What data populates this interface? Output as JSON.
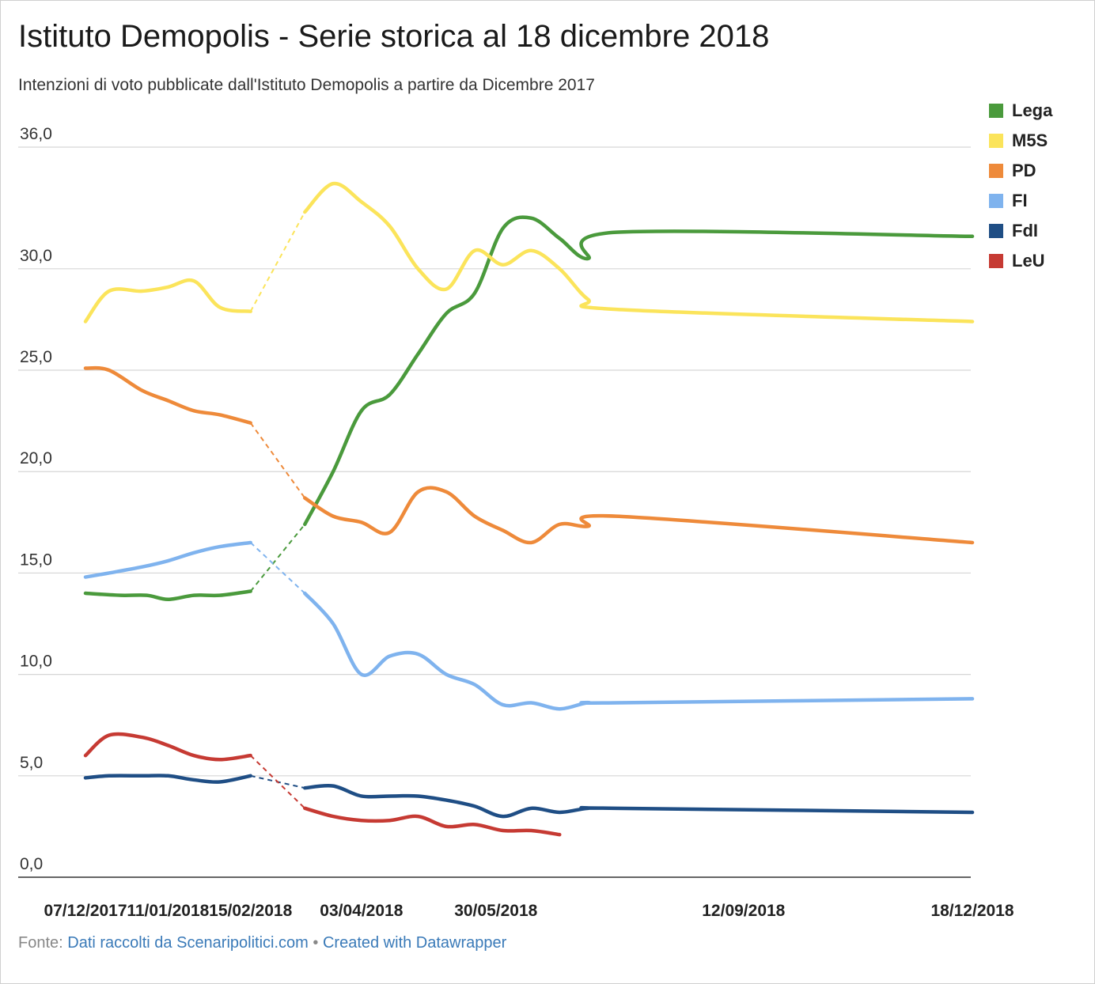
{
  "header": {
    "title": "Istituto Demopolis - Serie storica al 18 dicembre 2018",
    "subtitle": "Intenzioni di voto pubblicate dall'Istituto Demopolis a partire da Dicembre 2017"
  },
  "footer": {
    "source_prefix": "Fonte:",
    "source_link": "Dati raccolti da Scenaripolitici.com",
    "separator": "•",
    "credit_link": "Created with Datawrapper"
  },
  "chart_data": {
    "type": "line",
    "title": "Istituto Demopolis - Serie storica al 18 dicembre 2018",
    "subtitle": "Intenzioni di voto pubblicate dall'Istituto Demopolis a partire da Dicembre 2017",
    "xlabel": "",
    "ylabel": "",
    "ylim": [
      0,
      36
    ],
    "yticks": [
      0,
      5,
      10,
      15,
      20,
      25,
      30,
      36
    ],
    "ytick_labels": [
      "0,0",
      "5,0",
      "10,0",
      "15,0",
      "20,0",
      "25,0",
      "30,0",
      "36,0"
    ],
    "xlim": [
      "2017-12-07",
      "2018-12-18"
    ],
    "xtick_dates": [
      "2017-12-07",
      "2018-01-11",
      "2018-02-15",
      "2018-04-03",
      "2018-05-30",
      "2018-09-12",
      "2018-12-18"
    ],
    "xtick_labels": [
      "07/12/2017",
      "11/01/2018",
      "15/02/2018",
      "03/04/2018",
      "30/05/2018",
      "12/09/2018",
      "18/12/2018"
    ],
    "grid": true,
    "legend_position": "top-right",
    "gap_dashed_between": [
      "2018-02-15",
      "2018-03-10"
    ],
    "series": [
      {
        "name": "Lega",
        "color": "#4a9a3c",
        "points": [
          [
            "2017-12-07",
            14.0
          ],
          [
            "2017-12-22",
            13.9
          ],
          [
            "2018-01-02",
            13.9
          ],
          [
            "2018-01-11",
            13.7
          ],
          [
            "2018-01-22",
            13.9
          ],
          [
            "2018-02-02",
            13.9
          ],
          [
            "2018-02-15",
            14.1
          ],
          [
            "2018-03-10",
            17.4
          ],
          [
            "2018-03-22",
            20.0
          ],
          [
            "2018-04-03",
            23.0
          ],
          [
            "2018-04-15",
            23.8
          ],
          [
            "2018-04-27",
            25.8
          ],
          [
            "2018-05-09",
            27.8
          ],
          [
            "2018-05-21",
            28.8
          ],
          [
            "2018-06-02",
            32.0
          ],
          [
            "2018-06-14",
            32.5
          ],
          [
            "2018-06-26",
            31.5
          ],
          [
            "2018-07-08",
            30.5
          ],
          [
            "2018-07-20",
            31.8
          ],
          [
            "2018-12-18",
            31.6
          ]
        ]
      },
      {
        "name": "M5S",
        "color": "#fbe45b",
        "points": [
          [
            "2017-12-07",
            27.4
          ],
          [
            "2017-12-17",
            28.9
          ],
          [
            "2017-12-31",
            28.9
          ],
          [
            "2018-01-11",
            29.1
          ],
          [
            "2018-01-22",
            29.4
          ],
          [
            "2018-02-02",
            28.1
          ],
          [
            "2018-02-15",
            27.9
          ],
          [
            "2018-03-10",
            32.8
          ],
          [
            "2018-03-22",
            34.2
          ],
          [
            "2018-04-03",
            33.3
          ],
          [
            "2018-04-15",
            32.1
          ],
          [
            "2018-04-27",
            30.0
          ],
          [
            "2018-05-09",
            29.0
          ],
          [
            "2018-05-21",
            30.9
          ],
          [
            "2018-06-02",
            30.2
          ],
          [
            "2018-06-14",
            30.9
          ],
          [
            "2018-06-26",
            30.0
          ],
          [
            "2018-07-08",
            28.5
          ],
          [
            "2018-07-20",
            28.0
          ],
          [
            "2018-12-18",
            27.4
          ]
        ]
      },
      {
        "name": "PD",
        "color": "#ee8a3a",
        "points": [
          [
            "2017-12-07",
            25.1
          ],
          [
            "2017-12-17",
            25.0
          ],
          [
            "2017-12-31",
            24.0
          ],
          [
            "2018-01-11",
            23.5
          ],
          [
            "2018-01-22",
            23.0
          ],
          [
            "2018-02-02",
            22.8
          ],
          [
            "2018-02-15",
            22.4
          ],
          [
            "2018-03-10",
            18.7
          ],
          [
            "2018-03-22",
            17.8
          ],
          [
            "2018-04-03",
            17.5
          ],
          [
            "2018-04-15",
            17.0
          ],
          [
            "2018-04-27",
            19.0
          ],
          [
            "2018-05-09",
            19.0
          ],
          [
            "2018-05-21",
            17.8
          ],
          [
            "2018-06-02",
            17.1
          ],
          [
            "2018-06-14",
            16.5
          ],
          [
            "2018-06-26",
            17.4
          ],
          [
            "2018-07-08",
            17.3
          ],
          [
            "2018-07-20",
            17.8
          ],
          [
            "2018-12-18",
            16.5
          ]
        ]
      },
      {
        "name": "FI",
        "color": "#7fb3ee",
        "points": [
          [
            "2017-12-07",
            14.8
          ],
          [
            "2017-12-17",
            15.0
          ],
          [
            "2017-12-31",
            15.3
          ],
          [
            "2018-01-11",
            15.6
          ],
          [
            "2018-01-22",
            16.0
          ],
          [
            "2018-02-02",
            16.3
          ],
          [
            "2018-02-15",
            16.5
          ],
          [
            "2018-03-10",
            14.0
          ],
          [
            "2018-03-22",
            12.5
          ],
          [
            "2018-04-03",
            10.0
          ],
          [
            "2018-04-15",
            10.9
          ],
          [
            "2018-04-27",
            11.0
          ],
          [
            "2018-05-09",
            10.0
          ],
          [
            "2018-05-21",
            9.5
          ],
          [
            "2018-06-02",
            8.5
          ],
          [
            "2018-06-14",
            8.6
          ],
          [
            "2018-06-26",
            8.3
          ],
          [
            "2018-07-08",
            8.6
          ],
          [
            "2018-07-20",
            8.6
          ],
          [
            "2018-12-18",
            8.8
          ]
        ]
      },
      {
        "name": "FdI",
        "color": "#1f4e85",
        "points": [
          [
            "2017-12-07",
            4.9
          ],
          [
            "2017-12-17",
            5.0
          ],
          [
            "2017-12-31",
            5.0
          ],
          [
            "2018-01-11",
            5.0
          ],
          [
            "2018-01-22",
            4.8
          ],
          [
            "2018-02-02",
            4.7
          ],
          [
            "2018-02-15",
            5.0
          ],
          [
            "2018-03-10",
            4.4
          ],
          [
            "2018-03-22",
            4.5
          ],
          [
            "2018-04-03",
            4.0
          ],
          [
            "2018-04-15",
            4.0
          ],
          [
            "2018-04-27",
            4.0
          ],
          [
            "2018-05-09",
            3.8
          ],
          [
            "2018-05-21",
            3.5
          ],
          [
            "2018-06-02",
            3.0
          ],
          [
            "2018-06-14",
            3.4
          ],
          [
            "2018-06-26",
            3.2
          ],
          [
            "2018-07-08",
            3.4
          ],
          [
            "2018-07-20",
            3.4
          ],
          [
            "2018-12-18",
            3.2
          ]
        ]
      },
      {
        "name": "LeU",
        "color": "#c63a33",
        "points": [
          [
            "2017-12-07",
            6.0
          ],
          [
            "2017-12-17",
            7.0
          ],
          [
            "2017-12-31",
            6.9
          ],
          [
            "2018-01-11",
            6.5
          ],
          [
            "2018-01-22",
            6.0
          ],
          [
            "2018-02-02",
            5.8
          ],
          [
            "2018-02-15",
            6.0
          ],
          [
            "2018-03-10",
            3.4
          ],
          [
            "2018-03-22",
            3.0
          ],
          [
            "2018-04-03",
            2.8
          ],
          [
            "2018-04-15",
            2.8
          ],
          [
            "2018-04-27",
            3.0
          ],
          [
            "2018-05-09",
            2.5
          ],
          [
            "2018-05-21",
            2.6
          ],
          [
            "2018-06-02",
            2.3
          ],
          [
            "2018-06-14",
            2.3
          ],
          [
            "2018-06-26",
            2.1
          ]
        ]
      }
    ]
  }
}
